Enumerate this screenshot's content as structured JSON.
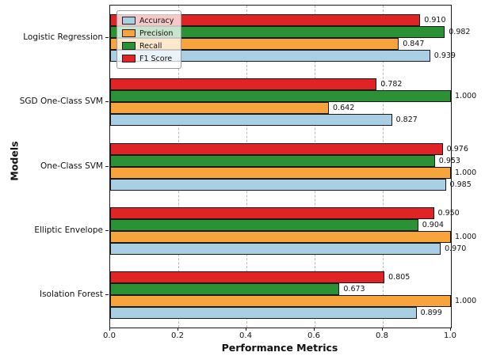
{
  "chart_data": {
    "type": "bar",
    "orientation": "horizontal",
    "title": "",
    "xlabel": "Performance Metrics",
    "ylabel": "Models",
    "xlim": [
      0.0,
      1.0
    ],
    "xticks": [
      0.0,
      0.2,
      0.4,
      0.6,
      0.8,
      1.0
    ],
    "grid": "dashed-vertical",
    "legend_position": "upper-left",
    "value_label_decimals": 3,
    "categories": [
      "Logistic Regression",
      "SGD One-Class SVM",
      "One-Class SVM",
      "Elliptic Envelope",
      "Isolation Forest"
    ],
    "series": [
      {
        "name": "Accuracy",
        "color": "#a9cfe5",
        "values": [
          0.939,
          0.827,
          0.985,
          0.97,
          0.899
        ]
      },
      {
        "name": "Precision",
        "color": "#f6a43b",
        "values": [
          0.847,
          0.642,
          1.0,
          1.0,
          1.0
        ]
      },
      {
        "name": "Recall",
        "color": "#2a9235",
        "values": [
          0.982,
          1.0,
          0.953,
          0.904,
          0.673
        ]
      },
      {
        "name": "F1 Score",
        "color": "#e02426",
        "values": [
          0.91,
          0.782,
          0.976,
          0.95,
          0.805
        ]
      }
    ]
  }
}
